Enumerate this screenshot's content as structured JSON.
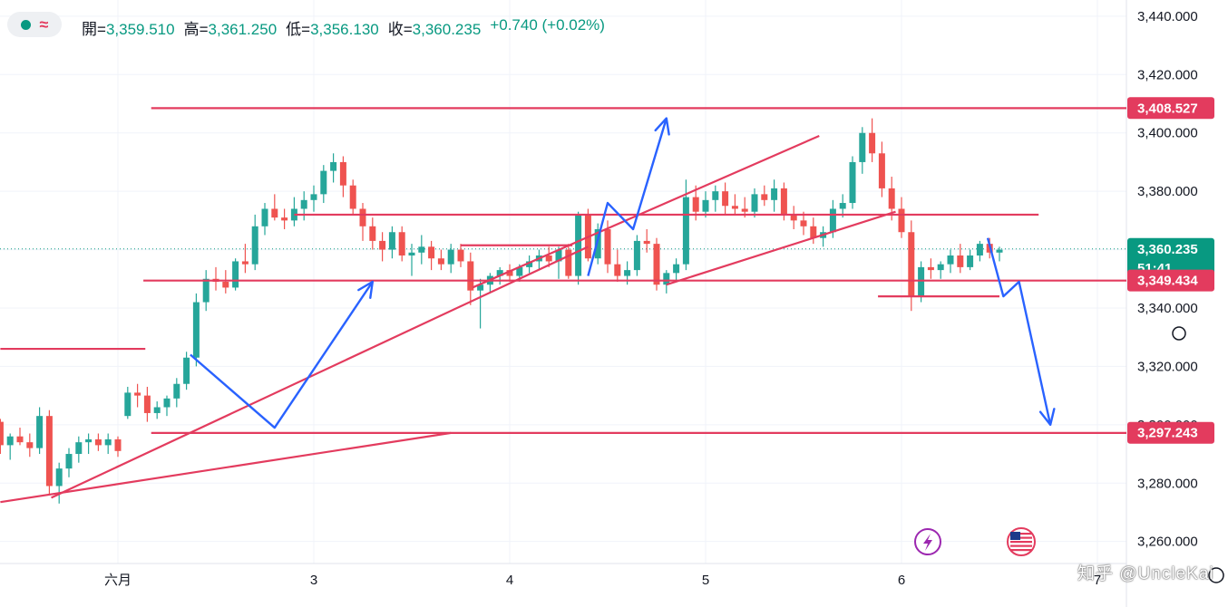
{
  "header": {
    "open_label": "開=",
    "open": "3,359.510",
    "high_label": "高=",
    "high": "3,361.250",
    "low_label": "低=",
    "low": "3,356.130",
    "close_label": "收=",
    "close": "3,360.235",
    "change": "+0.740 (+0.02%)"
  },
  "watermark": "知乎 @UncleKai",
  "colors": {
    "up": "#26a69a",
    "down": "#ef5350",
    "line_red": "#e33b5e",
    "arrow_blue": "#2962ff",
    "tag_green": "#089981"
  },
  "icons": [
    "lightning-icon",
    "us-flag-icon"
  ],
  "chart_data": {
    "type": "candlestick",
    "yticks": [
      "3,440.000",
      "3,420.000",
      "3,400.000",
      "3,380.000",
      "3,360.000",
      "3,340.000",
      "3,320.000",
      "3,300.000",
      "3,280.000",
      "3,260.000"
    ],
    "yvalues": [
      3440,
      3420,
      3400,
      3380,
      3360,
      3340,
      3320,
      3300,
      3280,
      3260
    ],
    "ylim": [
      3254,
      3444
    ],
    "xticks": [
      {
        "label": "六月",
        "t": 1
      },
      {
        "label": "3",
        "t": 2
      },
      {
        "label": "4",
        "t": 3
      },
      {
        "label": "5",
        "t": 4
      },
      {
        "label": "6",
        "t": 5
      },
      {
        "label": "7",
        "t": 6
      }
    ],
    "xlim": [
      0.4,
      6.2
    ],
    "grid": true,
    "price_tags": [
      {
        "label": "3,408.527",
        "value": 3408.527,
        "color": "#e33b5e"
      },
      {
        "label": "3,360.235",
        "value": 3360.235,
        "color": "#089981",
        "sub": "51:41"
      },
      {
        "label": "3,349.434",
        "value": 3349.434,
        "color": "#e33b5e"
      },
      {
        "label": "3,297.243",
        "value": 3297.243,
        "color": "#e33b5e"
      }
    ],
    "levels": [
      {
        "value": 3408.5,
        "t0": 1.17,
        "t1": 6.2
      },
      {
        "value": 3349.4,
        "t0": 1.13,
        "t1": 6.2
      },
      {
        "value": 3372,
        "t0": 1.9,
        "t1": 5.7
      },
      {
        "value": 3297.2,
        "t0": 1.17,
        "t1": 6.2
      },
      {
        "value": 3326,
        "t0": 0.4,
        "t1": 1.14
      },
      {
        "value": 3361.5,
        "t0": 2.75,
        "t1": 3.32
      },
      {
        "value": 3344,
        "t0": 4.88,
        "t1": 5.5
      }
    ],
    "trendlines": [
      {
        "t0": 0.4,
        "v0": 3273.5,
        "t1": 2.7,
        "v1": 3297.2
      },
      {
        "t0": 0.66,
        "v0": 3275,
        "t1": 3.4,
        "v1": 3361
      },
      {
        "t0": 2.81,
        "v0": 3347,
        "t1": 4.58,
        "v1": 3399
      },
      {
        "t0": 3.8,
        "v0": 3348,
        "t1": 4.97,
        "v1": 3373
      }
    ],
    "arrows": [
      {
        "points": [
          [
            1.37,
            3324
          ],
          [
            1.8,
            3299
          ],
          [
            2.3,
            3349
          ]
        ]
      },
      {
        "points": [
          [
            3.4,
            3351
          ],
          [
            3.5,
            3376
          ],
          [
            3.63,
            3367
          ],
          [
            3.8,
            3405
          ]
        ]
      },
      {
        "points": [
          [
            5.44,
            3364
          ],
          [
            5.52,
            3344
          ],
          [
            5.6,
            3349
          ],
          [
            5.76,
            3300
          ]
        ]
      }
    ],
    "candles": [
      [
        0.4,
        3301,
        3302,
        3290,
        3293
      ],
      [
        0.45,
        3293,
        3297,
        3288,
        3296
      ],
      [
        0.5,
        3296,
        3299,
        3293,
        3294
      ],
      [
        0.55,
        3294,
        3297,
        3289,
        3292
      ],
      [
        0.6,
        3292,
        3306,
        3290,
        3303
      ],
      [
        0.65,
        3303,
        3305,
        3276,
        3279
      ],
      [
        0.7,
        3279,
        3287,
        3273,
        3285
      ],
      [
        0.75,
        3285,
        3292,
        3282,
        3290
      ],
      [
        0.8,
        3290,
        3296,
        3287,
        3294
      ],
      [
        0.85,
        3294,
        3297,
        3290,
        3295
      ],
      [
        0.9,
        3295,
        3297,
        3291,
        3293
      ],
      [
        0.95,
        3293,
        3297,
        3290,
        3295
      ],
      [
        1.0,
        3295,
        3296,
        3289,
        3291
      ],
      [
        1.05,
        3303,
        3313,
        3302,
        3311
      ],
      [
        1.1,
        3311,
        3314,
        3306,
        3310
      ],
      [
        1.15,
        3310,
        3313,
        3301,
        3304
      ],
      [
        1.2,
        3304,
        3308,
        3302,
        3306
      ],
      [
        1.25,
        3306,
        3310,
        3303,
        3309
      ],
      [
        1.3,
        3309,
        3316,
        3306,
        3314
      ],
      [
        1.35,
        3314,
        3325,
        3312,
        3323
      ],
      [
        1.4,
        3323,
        3345,
        3320,
        3342
      ],
      [
        1.45,
        3342,
        3353,
        3339,
        3350
      ],
      [
        1.5,
        3350,
        3354,
        3346,
        3349
      ],
      [
        1.55,
        3349,
        3353,
        3345,
        3347
      ],
      [
        1.6,
        3347,
        3357,
        3346,
        3356
      ],
      [
        1.65,
        3356,
        3362,
        3352,
        3355
      ],
      [
        1.7,
        3355,
        3372,
        3353,
        3368
      ],
      [
        1.75,
        3368,
        3376,
        3365,
        3374
      ],
      [
        1.8,
        3374,
        3379,
        3370,
        3371
      ],
      [
        1.85,
        3371,
        3374,
        3367,
        3370
      ],
      [
        1.9,
        3370,
        3378,
        3368,
        3374
      ],
      [
        1.95,
        3374,
        3380,
        3370,
        3377
      ],
      [
        2.0,
        3377,
        3382,
        3373,
        3379
      ],
      [
        2.05,
        3379,
        3389,
        3376,
        3387
      ],
      [
        2.1,
        3387,
        3393,
        3383,
        3390
      ],
      [
        2.15,
        3390,
        3392,
        3378,
        3382
      ],
      [
        2.2,
        3382,
        3384,
        3372,
        3374
      ],
      [
        2.25,
        3374,
        3376,
        3363,
        3368
      ],
      [
        2.3,
        3368,
        3371,
        3360,
        3363
      ],
      [
        2.35,
        3363,
        3366,
        3356,
        3360
      ],
      [
        2.4,
        3360,
        3368,
        3357,
        3366
      ],
      [
        2.45,
        3366,
        3368,
        3356,
        3358
      ],
      [
        2.5,
        3358,
        3362,
        3351,
        3359
      ],
      [
        2.55,
        3359,
        3365,
        3355,
        3361
      ],
      [
        2.6,
        3361,
        3363,
        3353,
        3357
      ],
      [
        2.65,
        3357,
        3360,
        3353,
        3355
      ],
      [
        2.7,
        3355,
        3362,
        3352,
        3360
      ],
      [
        2.75,
        3360,
        3362,
        3354,
        3356
      ],
      [
        2.8,
        3356,
        3359,
        3341,
        3346
      ],
      [
        2.85,
        3346,
        3350,
        3333,
        3348
      ],
      [
        2.9,
        3348,
        3352,
        3345,
        3351
      ],
      [
        2.95,
        3351,
        3354,
        3348,
        3353
      ],
      [
        3.0,
        3353,
        3355,
        3349,
        3351
      ],
      [
        3.05,
        3351,
        3355,
        3349,
        3354
      ],
      [
        3.1,
        3354,
        3358,
        3352,
        3356
      ],
      [
        3.15,
        3356,
        3360,
        3353,
        3358
      ],
      [
        3.2,
        3358,
        3361,
        3354,
        3356
      ],
      [
        3.25,
        3356,
        3361,
        3350,
        3360
      ],
      [
        3.3,
        3360,
        3362,
        3350,
        3351
      ],
      [
        3.35,
        3351,
        3373,
        3348,
        3372
      ],
      [
        3.4,
        3372,
        3374,
        3356,
        3357
      ],
      [
        3.45,
        3357,
        3369,
        3355,
        3367
      ],
      [
        3.5,
        3367,
        3370,
        3352,
        3355
      ],
      [
        3.55,
        3355,
        3360,
        3349,
        3351
      ],
      [
        3.6,
        3351,
        3356,
        3348,
        3353
      ],
      [
        3.65,
        3353,
        3365,
        3351,
        3363
      ],
      [
        3.7,
        3363,
        3367,
        3359,
        3362
      ],
      [
        3.75,
        3362,
        3364,
        3346,
        3348
      ],
      [
        3.8,
        3348,
        3353,
        3345,
        3352
      ],
      [
        3.85,
        3352,
        3357,
        3349,
        3355
      ],
      [
        3.9,
        3355,
        3384,
        3353,
        3378
      ],
      [
        3.95,
        3378,
        3382,
        3370,
        3373
      ],
      [
        4.0,
        3373,
        3380,
        3371,
        3377
      ],
      [
        4.05,
        3377,
        3382,
        3373,
        3380
      ],
      [
        4.1,
        3380,
        3383,
        3372,
        3375
      ],
      [
        4.15,
        3375,
        3379,
        3372,
        3374
      ],
      [
        4.2,
        3374,
        3378,
        3371,
        3373
      ],
      [
        4.25,
        3373,
        3381,
        3371,
        3379
      ],
      [
        4.3,
        3379,
        3382,
        3375,
        3377
      ],
      [
        4.35,
        3377,
        3384,
        3373,
        3381
      ],
      [
        4.4,
        3381,
        3383,
        3370,
        3372
      ],
      [
        4.45,
        3372,
        3375,
        3367,
        3370
      ],
      [
        4.5,
        3370,
        3373,
        3365,
        3368
      ],
      [
        4.55,
        3368,
        3371,
        3362,
        3364
      ],
      [
        4.6,
        3364,
        3368,
        3361,
        3366
      ],
      [
        4.65,
        3366,
        3377,
        3364,
        3374
      ],
      [
        4.7,
        3374,
        3379,
        3371,
        3376
      ],
      [
        4.75,
        3376,
        3392,
        3374,
        3390
      ],
      [
        4.8,
        3390,
        3402,
        3386,
        3400
      ],
      [
        4.85,
        3400,
        3405,
        3390,
        3393
      ],
      [
        4.9,
        3393,
        3397,
        3378,
        3381
      ],
      [
        4.95,
        3381,
        3385,
        3370,
        3374
      ],
      [
        5.0,
        3374,
        3378,
        3364,
        3366
      ],
      [
        5.05,
        3366,
        3370,
        3339,
        3344
      ],
      [
        5.1,
        3344,
        3356,
        3342,
        3354
      ],
      [
        5.15,
        3354,
        3357,
        3350,
        3353
      ],
      [
        5.2,
        3353,
        3356,
        3350,
        3355
      ],
      [
        5.25,
        3355,
        3360,
        3352,
        3358
      ],
      [
        5.3,
        3358,
        3362,
        3352,
        3354
      ],
      [
        5.35,
        3354,
        3360,
        3353,
        3358
      ],
      [
        5.4,
        3358,
        3363,
        3356,
        3362
      ],
      [
        5.45,
        3362,
        3364,
        3357,
        3359
      ],
      [
        5.5,
        3359,
        3361,
        3356,
        3360
      ]
    ]
  }
}
